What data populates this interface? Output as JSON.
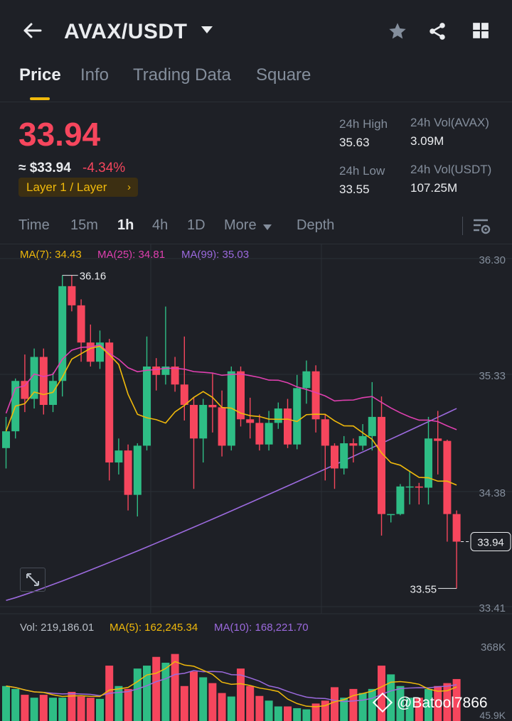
{
  "header": {
    "back_icon": "arrow-left-icon",
    "pair": "AVAX/USDT",
    "dropdown_icon": "caret-down-icon",
    "actions": [
      "star-icon",
      "share-icon",
      "grid-icon"
    ]
  },
  "tabs": [
    {
      "label": "Price",
      "active": true
    },
    {
      "label": "Info",
      "active": false
    },
    {
      "label": "Trading Data",
      "active": false
    },
    {
      "label": "Square",
      "active": false
    }
  ],
  "ticker": {
    "last_price": "33.94",
    "usd_value": "≈ $33.94",
    "change_pct": "-4.34%",
    "tag": "Layer 1 / Layer",
    "high_label": "24h High",
    "high_value": "35.63",
    "low_label": "24h Low",
    "low_value": "33.55",
    "vol_base_label": "24h Vol(AVAX)",
    "vol_base_value": "3.09M",
    "vol_quote_label": "24h Vol(USDT)",
    "vol_quote_value": "107.25M"
  },
  "timeframes": [
    {
      "label": "Time",
      "active": false
    },
    {
      "label": "15m",
      "active": false
    },
    {
      "label": "1h",
      "active": true
    },
    {
      "label": "4h",
      "active": false
    },
    {
      "label": "1D",
      "active": false
    },
    {
      "label": "More",
      "active": false
    },
    {
      "label": "Depth",
      "active": false
    }
  ],
  "indicators": {
    "ma7": "MA(7): 34.43",
    "ma25": "MA(25): 34.81",
    "ma99": "MA(99): 35.03",
    "vol": "Vol: 219,186.01",
    "vol_ma5": "MA(5): 162,245.34",
    "vol_ma10": "MA(10): 168,221.70"
  },
  "colors": {
    "up": "#2ebd85",
    "down": "#f6465d",
    "ma7": "#f0b90b",
    "ma25": "#e040b0",
    "ma99": "#9c6ade",
    "accent": "#f0b90b"
  },
  "watermark": "@Batool7866",
  "chart_data": {
    "type": "candlestick",
    "y_ticks": [
      "36.30",
      "35.33",
      "34.38",
      "33.41"
    ],
    "ylim": [
      33.33,
      36.5
    ],
    "high_marker": "36.16",
    "low_marker": "33.55",
    "last_price_marker": "33.94",
    "vol_ticks": [
      "368K",
      "45.9K"
    ],
    "candles": [
      [
        34.72,
        34.86,
        34.55,
        34.98
      ],
      [
        34.86,
        35.28,
        34.8,
        35.3
      ],
      [
        35.28,
        35.13,
        35.02,
        35.5
      ],
      [
        35.13,
        35.48,
        35.05,
        35.55
      ],
      [
        35.48,
        35.08,
        35.0,
        35.55
      ],
      [
        35.08,
        35.28,
        35.02,
        35.35
      ],
      [
        35.28,
        36.07,
        35.15,
        36.16
      ],
      [
        36.07,
        35.91,
        35.86,
        36.16
      ],
      [
        35.91,
        35.6,
        35.44,
        35.96
      ],
      [
        35.6,
        35.44,
        35.4,
        35.75
      ],
      [
        35.44,
        35.6,
        35.38,
        35.7
      ],
      [
        35.6,
        34.6,
        34.45,
        35.63
      ],
      [
        34.6,
        34.7,
        34.5,
        34.8
      ],
      [
        34.7,
        34.33,
        34.2,
        34.75
      ],
      [
        34.33,
        34.74,
        34.15,
        34.76
      ],
      [
        34.74,
        35.4,
        34.7,
        35.65
      ],
      [
        35.4,
        35.33,
        35.2,
        35.47
      ],
      [
        35.33,
        35.4,
        35.25,
        35.9
      ],
      [
        35.4,
        35.25,
        35.19,
        35.48
      ],
      [
        35.25,
        35.08,
        34.95,
        35.65
      ],
      [
        35.08,
        34.8,
        34.38,
        35.14
      ],
      [
        34.8,
        35.08,
        34.6,
        35.13
      ],
      [
        35.08,
        35.06,
        34.85,
        35.34
      ],
      [
        35.06,
        34.74,
        34.65,
        35.2
      ],
      [
        34.74,
        35.36,
        34.7,
        35.4
      ],
      [
        35.36,
        34.96,
        34.9,
        35.4
      ],
      [
        34.96,
        34.93,
        34.8,
        35.14
      ],
      [
        34.93,
        34.75,
        34.7,
        35.0
      ],
      [
        34.75,
        34.93,
        34.7,
        35.03
      ],
      [
        34.93,
        35.05,
        34.88,
        35.1
      ],
      [
        35.05,
        34.75,
        34.72,
        35.13
      ],
      [
        34.75,
        35.22,
        34.71,
        35.33
      ],
      [
        35.22,
        35.36,
        35.09,
        35.45
      ],
      [
        35.36,
        34.96,
        34.85,
        35.41
      ],
      [
        34.96,
        34.74,
        34.45,
        35.0
      ],
      [
        34.74,
        34.55,
        34.38,
        34.76
      ],
      [
        34.55,
        34.76,
        34.5,
        34.82
      ],
      [
        34.76,
        34.74,
        34.6,
        34.8
      ],
      [
        34.74,
        34.82,
        34.7,
        34.92
      ],
      [
        34.82,
        34.98,
        34.7,
        35.27
      ],
      [
        34.98,
        34.17,
        33.99,
        35.15
      ],
      [
        34.17,
        34.17,
        34.1,
        34.17
      ],
      [
        34.17,
        34.4,
        34.16,
        34.42
      ],
      [
        34.4,
        34.4,
        34.25,
        34.53
      ],
      [
        34.4,
        34.39,
        34.25,
        34.43
      ],
      [
        34.39,
        34.8,
        34.25,
        34.98
      ],
      [
        34.8,
        34.78,
        34.5,
        35.03
      ],
      [
        34.78,
        34.17,
        33.94,
        34.79
      ],
      [
        34.17,
        33.94,
        33.55,
        34.2
      ]
    ],
    "volumes": [
      60,
      55,
      45,
      40,
      45,
      40,
      40,
      50,
      42,
      40,
      38,
      95,
      60,
      55,
      90,
      95,
      110,
      100,
      115,
      60,
      85,
      75,
      65,
      48,
      42,
      90,
      60,
      43,
      35,
      25,
      25,
      22,
      20,
      30,
      35,
      58,
      40,
      55,
      48,
      55,
      95,
      80,
      60,
      40,
      40,
      55,
      60,
      65,
      72
    ]
  }
}
